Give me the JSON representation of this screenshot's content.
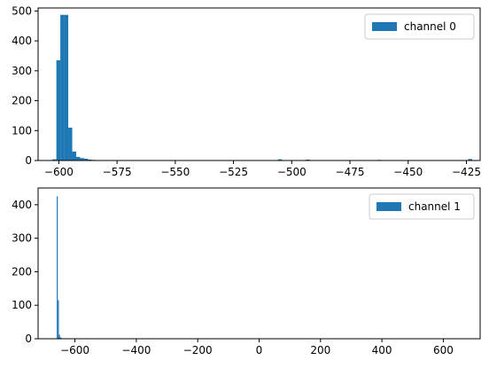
{
  "chart_data": [
    {
      "type": "bar",
      "title": "",
      "xlabel": "",
      "ylabel": "",
      "xlim": [
        -608.9,
        -419.1
      ],
      "ylim": [
        0,
        510
      ],
      "xticks": [
        -600,
        -575,
        -550,
        -525,
        -500,
        -475,
        -450,
        -425
      ],
      "yticks": [
        0,
        100,
        200,
        300,
        400,
        500
      ],
      "grid": false,
      "legend": "top-right",
      "series": [
        {
          "name": "channel 0",
          "color": "#1f77b4",
          "bin_width": 1.7,
          "bins": [
            {
              "x": -601.9,
              "count": 4
            },
            {
              "x": -600.2,
              "count": 335
            },
            {
              "x": -598.5,
              "count": 487
            },
            {
              "x": -596.8,
              "count": 487
            },
            {
              "x": -595.1,
              "count": 110
            },
            {
              "x": -593.4,
              "count": 30
            },
            {
              "x": -591.7,
              "count": 12
            },
            {
              "x": -590.0,
              "count": 8
            },
            {
              "x": -588.3,
              "count": 6
            },
            {
              "x": -586.6,
              "count": 3
            },
            {
              "x": -584.9,
              "count": 2
            },
            {
              "x": -583.2,
              "count": 1
            },
            {
              "x": -505.0,
              "count": 4
            },
            {
              "x": -493.1,
              "count": 3
            },
            {
              "x": -462.5,
              "count": 2
            },
            {
              "x": -423.4,
              "count": 5
            }
          ]
        }
      ]
    },
    {
      "type": "bar",
      "title": "",
      "xlabel": "",
      "ylabel": "",
      "xlim": [
        -720,
        720
      ],
      "ylim": [
        0,
        450
      ],
      "xticks": [
        -600,
        -400,
        -200,
        0,
        200,
        400,
        600
      ],
      "yticks": [
        0,
        100,
        200,
        300,
        400
      ],
      "grid": false,
      "legend": "top-right",
      "series": [
        {
          "name": "channel 1",
          "color": "#1f77b4",
          "bin_width": 3.5,
          "bins": [
            {
              "x": -657.5,
              "count": 425
            },
            {
              "x": -654.0,
              "count": 115
            },
            {
              "x": -650.5,
              "count": 12
            },
            {
              "x": -647.0,
              "count": 4
            },
            {
              "x": -643.5,
              "count": 2
            },
            {
              "x": -605.0,
              "count": 1
            }
          ]
        }
      ]
    }
  ]
}
